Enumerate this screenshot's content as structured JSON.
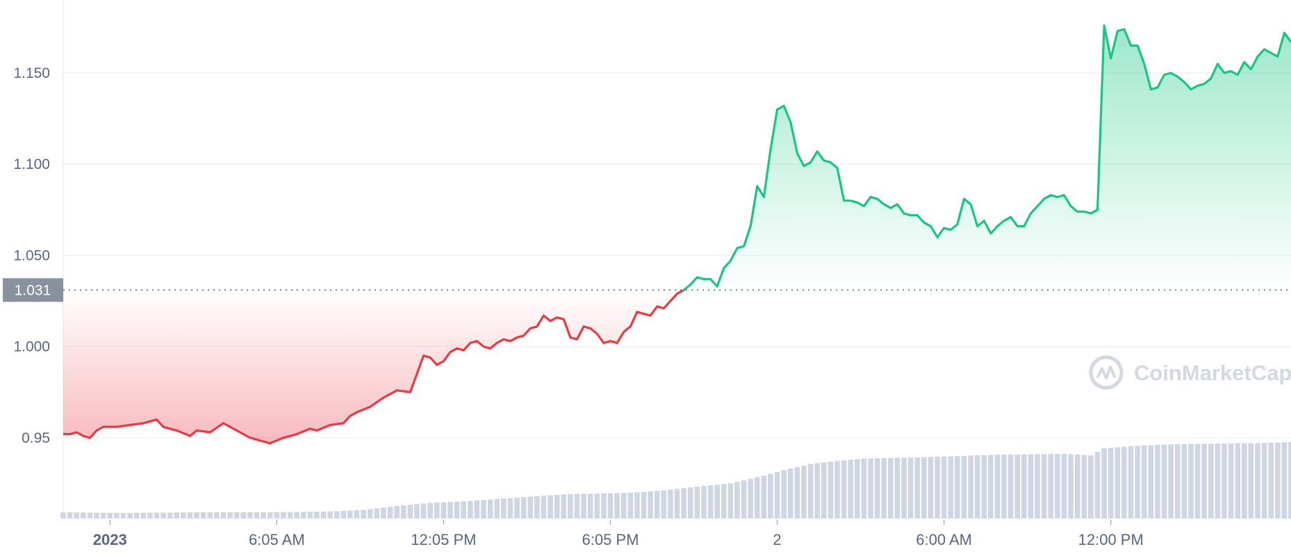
{
  "chart_data": {
    "type": "area",
    "reference_price": 1.031,
    "reference_label": "1.031",
    "ylim": [
      0.905,
      1.19
    ],
    "y_ticks": [
      {
        "value": 0.95,
        "label": "0.95"
      },
      {
        "value": 1.0,
        "label": "1.000"
      },
      {
        "value": 1.05,
        "label": "1.050"
      },
      {
        "value": 1.1,
        "label": "1.100"
      },
      {
        "value": 1.15,
        "label": "1.150"
      }
    ],
    "x_ticks": [
      {
        "index": 7,
        "label": "2023",
        "bold": true
      },
      {
        "index": 32,
        "label": "6:05 AM"
      },
      {
        "index": 57,
        "label": "12:05 PM"
      },
      {
        "index": 82,
        "label": "6:05 PM"
      },
      {
        "index": 107,
        "label": "2"
      },
      {
        "index": 132,
        "label": "6:00 AM"
      },
      {
        "index": 157,
        "label": "12:00 PM"
      }
    ],
    "x_count": 185,
    "above_color": "#16c784",
    "below_color": "#ea3943",
    "price_knots": [
      [
        0,
        0.952
      ],
      [
        1,
        0.952
      ],
      [
        2,
        0.953
      ],
      [
        3,
        0.951
      ],
      [
        4,
        0.95
      ],
      [
        5,
        0.954
      ],
      [
        6,
        0.956
      ],
      [
        7,
        0.956
      ],
      [
        8,
        0.956
      ],
      [
        10,
        0.957
      ],
      [
        12,
        0.958
      ],
      [
        14,
        0.96
      ],
      [
        15,
        0.956
      ],
      [
        17,
        0.954
      ],
      [
        19,
        0.951
      ],
      [
        20,
        0.954
      ],
      [
        22,
        0.953
      ],
      [
        24,
        0.958
      ],
      [
        26,
        0.954
      ],
      [
        28,
        0.95
      ],
      [
        30,
        0.948
      ],
      [
        31,
        0.947
      ],
      [
        33,
        0.95
      ],
      [
        35,
        0.952
      ],
      [
        37,
        0.955
      ],
      [
        38,
        0.954
      ],
      [
        40,
        0.957
      ],
      [
        42,
        0.958
      ],
      [
        43,
        0.962
      ],
      [
        44,
        0.964
      ],
      [
        46,
        0.967
      ],
      [
        48,
        0.972
      ],
      [
        50,
        0.976
      ],
      [
        52,
        0.975
      ],
      [
        54,
        0.995
      ],
      [
        55,
        0.994
      ],
      [
        56,
        0.99
      ],
      [
        57,
        0.992
      ],
      [
        58,
        0.997
      ],
      [
        59,
        0.999
      ],
      [
        60,
        0.998
      ],
      [
        61,
        1.002
      ],
      [
        62,
        1.003
      ],
      [
        63,
        1.0
      ],
      [
        64,
        0.999
      ],
      [
        65,
        1.002
      ],
      [
        66,
        1.004
      ],
      [
        67,
        1.003
      ],
      [
        68,
        1.005
      ],
      [
        69,
        1.006
      ],
      [
        70,
        1.01
      ],
      [
        71,
        1.011
      ],
      [
        72,
        1.017
      ],
      [
        73,
        1.014
      ],
      [
        74,
        1.016
      ],
      [
        75,
        1.015
      ],
      [
        76,
        1.005
      ],
      [
        77,
        1.004
      ],
      [
        78,
        1.011
      ],
      [
        79,
        1.01
      ],
      [
        80,
        1.007
      ],
      [
        81,
        1.002
      ],
      [
        82,
        1.003
      ],
      [
        83,
        1.002
      ],
      [
        84,
        1.008
      ],
      [
        85,
        1.011
      ],
      [
        86,
        1.019
      ],
      [
        87,
        1.018
      ],
      [
        88,
        1.017
      ],
      [
        89,
        1.022
      ],
      [
        90,
        1.021
      ],
      [
        91,
        1.025
      ],
      [
        92,
        1.029
      ],
      [
        93,
        1.031
      ],
      [
        94,
        1.034
      ],
      [
        95,
        1.038
      ],
      [
        96,
        1.037
      ],
      [
        97,
        1.037
      ],
      [
        98,
        1.033
      ],
      [
        99,
        1.043
      ],
      [
        100,
        1.047
      ],
      [
        101,
        1.054
      ],
      [
        102,
        1.055
      ],
      [
        103,
        1.066
      ],
      [
        104,
        1.088
      ],
      [
        105,
        1.082
      ],
      [
        106,
        1.108
      ],
      [
        107,
        1.13
      ],
      [
        108,
        1.132
      ],
      [
        109,
        1.123
      ],
      [
        110,
        1.106
      ],
      [
        111,
        1.099
      ],
      [
        112,
        1.101
      ],
      [
        113,
        1.107
      ],
      [
        114,
        1.102
      ],
      [
        115,
        1.101
      ],
      [
        116,
        1.098
      ],
      [
        117,
        1.08
      ],
      [
        118,
        1.08
      ],
      [
        119,
        1.079
      ],
      [
        120,
        1.077
      ],
      [
        121,
        1.082
      ],
      [
        122,
        1.081
      ],
      [
        123,
        1.078
      ],
      [
        124,
        1.076
      ],
      [
        125,
        1.078
      ],
      [
        126,
        1.073
      ],
      [
        127,
        1.072
      ],
      [
        128,
        1.072
      ],
      [
        129,
        1.068
      ],
      [
        130,
        1.066
      ],
      [
        131,
        1.06
      ],
      [
        132,
        1.065
      ],
      [
        133,
        1.064
      ],
      [
        134,
        1.067
      ],
      [
        135,
        1.081
      ],
      [
        136,
        1.078
      ],
      [
        137,
        1.066
      ],
      [
        138,
        1.069
      ],
      [
        139,
        1.062
      ],
      [
        140,
        1.066
      ],
      [
        141,
        1.069
      ],
      [
        142,
        1.071
      ],
      [
        143,
        1.066
      ],
      [
        144,
        1.066
      ],
      [
        145,
        1.073
      ],
      [
        146,
        1.077
      ],
      [
        147,
        1.081
      ],
      [
        148,
        1.083
      ],
      [
        149,
        1.082
      ],
      [
        150,
        1.083
      ],
      [
        151,
        1.077
      ],
      [
        152,
        1.074
      ],
      [
        153,
        1.074
      ],
      [
        154,
        1.073
      ],
      [
        155,
        1.075
      ],
      [
        156,
        1.176
      ],
      [
        157,
        1.158
      ],
      [
        158,
        1.173
      ],
      [
        159,
        1.174
      ],
      [
        160,
        1.165
      ],
      [
        161,
        1.165
      ],
      [
        162,
        1.155
      ],
      [
        163,
        1.141
      ],
      [
        164,
        1.142
      ],
      [
        165,
        1.149
      ],
      [
        166,
        1.15
      ],
      [
        167,
        1.148
      ],
      [
        168,
        1.145
      ],
      [
        169,
        1.141
      ],
      [
        170,
        1.143
      ],
      [
        171,
        1.144
      ],
      [
        172,
        1.147
      ],
      [
        173,
        1.155
      ],
      [
        174,
        1.15
      ],
      [
        175,
        1.151
      ],
      [
        176,
        1.149
      ],
      [
        177,
        1.156
      ],
      [
        178,
        1.152
      ],
      [
        179,
        1.159
      ],
      [
        180,
        1.163
      ],
      [
        181,
        1.161
      ],
      [
        182,
        1.159
      ],
      [
        183,
        1.172
      ],
      [
        184,
        1.167
      ]
    ],
    "volume_knots": [
      [
        0,
        0.08
      ],
      [
        10,
        0.07
      ],
      [
        20,
        0.08
      ],
      [
        30,
        0.08
      ],
      [
        40,
        0.09
      ],
      [
        45,
        0.11
      ],
      [
        50,
        0.16
      ],
      [
        55,
        0.2
      ],
      [
        60,
        0.22
      ],
      [
        65,
        0.25
      ],
      [
        70,
        0.28
      ],
      [
        75,
        0.31
      ],
      [
        80,
        0.32
      ],
      [
        85,
        0.33
      ],
      [
        90,
        0.36
      ],
      [
        95,
        0.41
      ],
      [
        100,
        0.45
      ],
      [
        105,
        0.55
      ],
      [
        108,
        0.62
      ],
      [
        112,
        0.7
      ],
      [
        115,
        0.73
      ],
      [
        120,
        0.77
      ],
      [
        130,
        0.79
      ],
      [
        140,
        0.82
      ],
      [
        150,
        0.83
      ],
      [
        154,
        0.81
      ],
      [
        156,
        0.9
      ],
      [
        160,
        0.93
      ],
      [
        165,
        0.95
      ],
      [
        170,
        0.96
      ],
      [
        180,
        0.97
      ],
      [
        184,
        0.98
      ]
    ]
  },
  "watermark": {
    "text": "CoinMarketCap"
  }
}
